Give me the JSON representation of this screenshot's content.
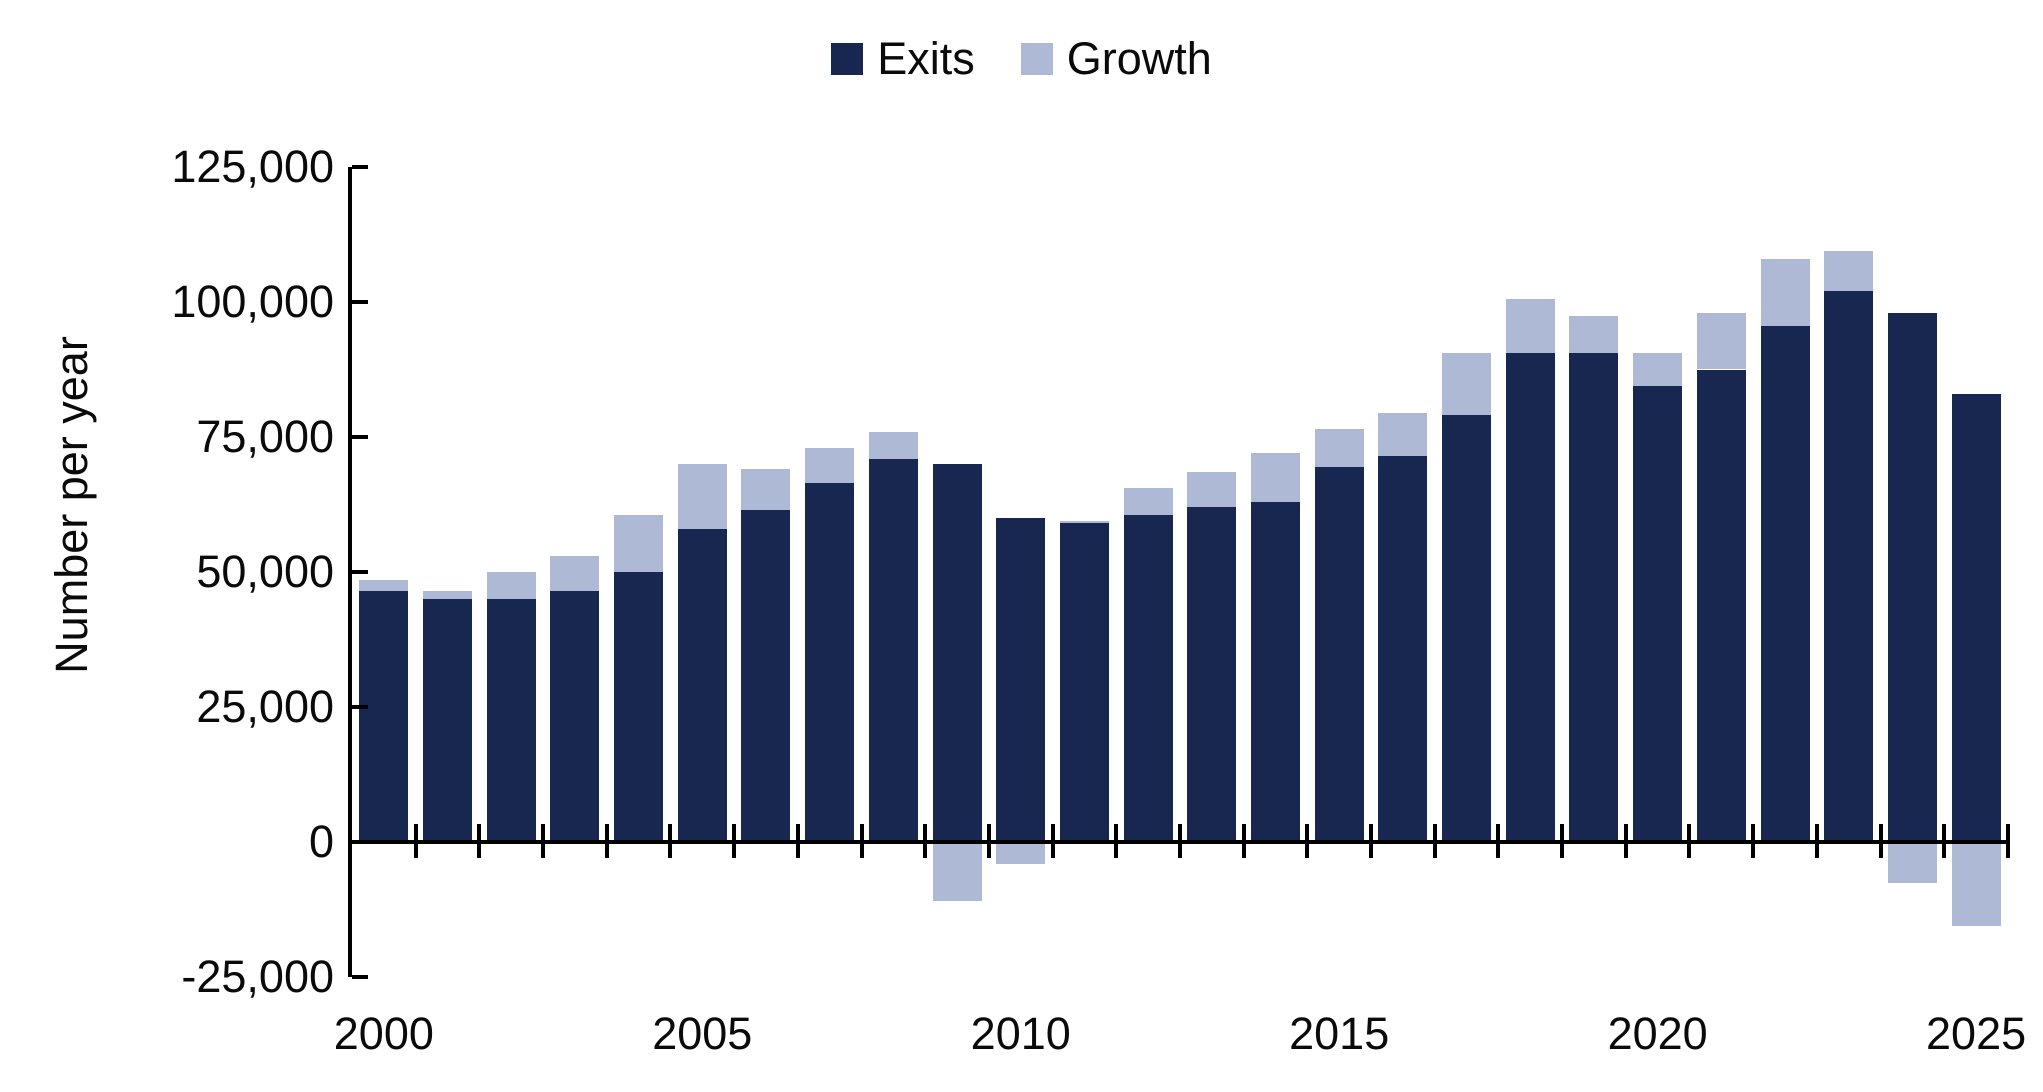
{
  "chart_data": {
    "type": "bar",
    "stacked": true,
    "title": "",
    "xlabel": "",
    "ylabel": "Number per year",
    "background": "#ffffff",
    "axis_color": "#000000",
    "grid": false,
    "legend_position": "top-center",
    "ylim": [
      -25000,
      125000
    ],
    "legend": [
      {
        "label": "Exits",
        "color": "#17274F"
      },
      {
        "label": "Growth",
        "color": "#AEB9D6"
      }
    ],
    "categories": [
      2000,
      2001,
      2002,
      2003,
      2004,
      2005,
      2006,
      2007,
      2008,
      2009,
      2010,
      2011,
      2012,
      2013,
      2014,
      2015,
      2016,
      2017,
      2018,
      2019,
      2020,
      2021,
      2022,
      2023,
      2024,
      2025
    ],
    "series": [
      {
        "name": "Exits",
        "color": "#17274F",
        "values": [
          46500,
          45000,
          45000,
          46500,
          50000,
          58000,
          61500,
          66500,
          71000,
          70000,
          60000,
          59000,
          60500,
          62000,
          63000,
          69500,
          71500,
          79000,
          90500,
          90500,
          84500,
          87500,
          95500,
          102000,
          98000,
          83000
        ]
      },
      {
        "name": "Growth",
        "color": "#AEB9D6",
        "values": [
          2000,
          1500,
          5000,
          6500,
          10500,
          12000,
          7500,
          6500,
          5000,
          -11000,
          -4000,
          500,
          5000,
          6500,
          9000,
          7000,
          8000,
          11500,
          10000,
          7000,
          6000,
          10500,
          12500,
          7500,
          -7500,
          -15500
        ]
      }
    ],
    "y_ticks": [
      {
        "value": 125000,
        "label": "125,000"
      },
      {
        "value": 100000,
        "label": "100,000"
      },
      {
        "value": 75000,
        "label": "75,000"
      },
      {
        "value": 50000,
        "label": "50,000"
      },
      {
        "value": 25000,
        "label": "25,000"
      },
      {
        "value": 0,
        "label": "0"
      },
      {
        "value": -25000,
        "label": "-25,000"
      }
    ],
    "x_tick_labels": [
      {
        "year": 2000,
        "label": "2000"
      },
      {
        "year": 2005,
        "label": "2005"
      },
      {
        "year": 2010,
        "label": "2010"
      },
      {
        "year": 2015,
        "label": "2015"
      },
      {
        "year": 2020,
        "label": "2020"
      },
      {
        "year": 2025,
        "label": "2025"
      }
    ]
  }
}
